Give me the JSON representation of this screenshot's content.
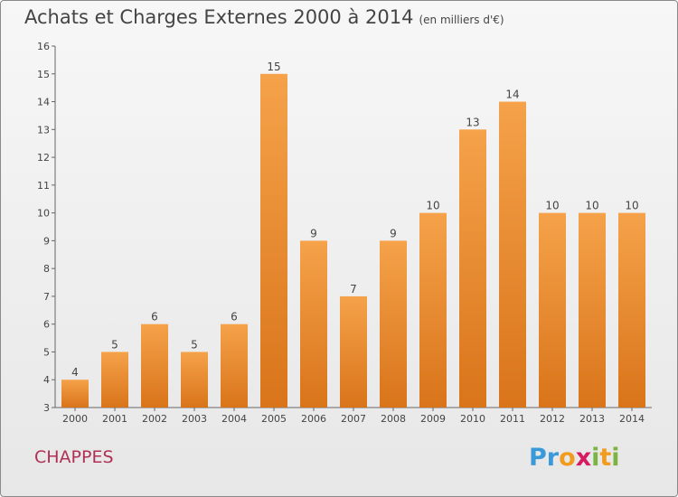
{
  "title": "Achats et Charges Externes 2000 à 2014",
  "subtitle": "(en milliers d'€)",
  "commune": "CHAPPES",
  "logo": {
    "text": "Proxiti",
    "letters": [
      "P",
      "r",
      "o",
      "x",
      "i",
      "t",
      "i"
    ],
    "colors": [
      "#3a9ad9",
      "#3a9ad9",
      "#f29c1f",
      "#d81b60",
      "#7cb342",
      "#f29c1f",
      "#7cb342"
    ]
  },
  "colors": {
    "bar": "#f39c3c",
    "bar_dark": "#d9741a",
    "text": "#444444",
    "commune": "#b03055"
  },
  "chart_data": {
    "type": "bar",
    "categories": [
      "2000",
      "2001",
      "2002",
      "2003",
      "2004",
      "2005",
      "2006",
      "2007",
      "2008",
      "2009",
      "2010",
      "2011",
      "2012",
      "2013",
      "2014"
    ],
    "values": [
      4,
      5,
      6,
      5,
      6,
      15,
      9,
      7,
      9,
      10,
      13,
      14,
      10,
      10,
      10
    ],
    "title": "Achats et Charges Externes 2000 à 2014",
    "xlabel": "",
    "ylabel": "",
    "ylim": [
      3,
      16
    ],
    "yticks": [
      3,
      4,
      5,
      6,
      7,
      8,
      9,
      10,
      11,
      12,
      13,
      14,
      15,
      16
    ],
    "grid": false,
    "data_labels": true
  }
}
